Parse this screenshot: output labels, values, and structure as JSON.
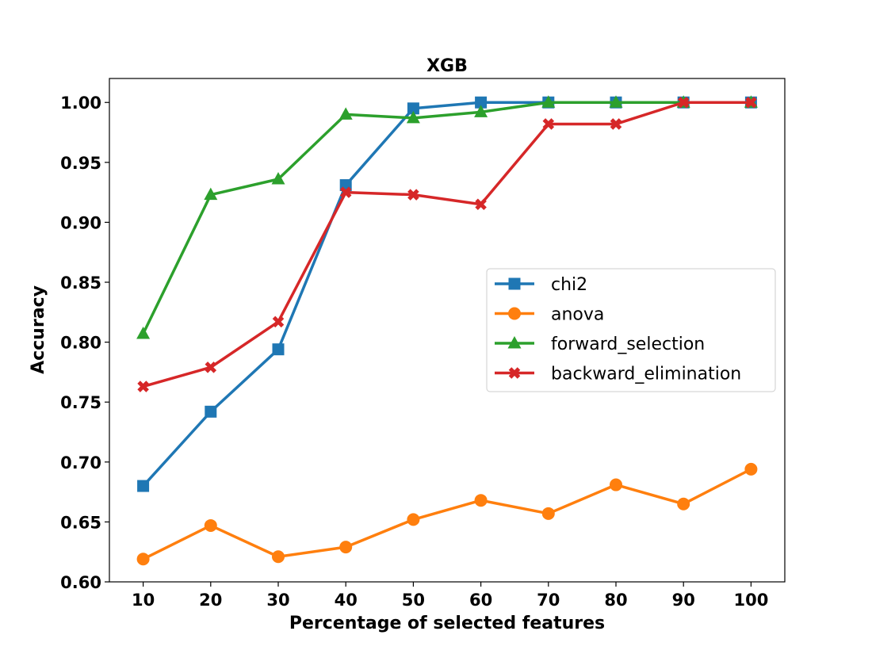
{
  "chart_data": {
    "type": "line",
    "title": "XGB",
    "xlabel": "Percentage of selected features",
    "ylabel": "Accuracy",
    "x": [
      10,
      20,
      30,
      40,
      50,
      60,
      70,
      80,
      90,
      100
    ],
    "xlim": [
      5,
      105
    ],
    "ylim": [
      0.6,
      1.02
    ],
    "yticks": [
      0.6,
      0.65,
      0.7,
      0.75,
      0.8,
      0.85,
      0.9,
      0.95,
      1.0
    ],
    "ytick_labels": [
      "0.60",
      "0.65",
      "0.70",
      "0.75",
      "0.80",
      "0.85",
      "0.90",
      "0.95",
      "1.00"
    ],
    "xticks": [
      10,
      20,
      30,
      40,
      50,
      60,
      70,
      80,
      90,
      100
    ],
    "xtick_labels": [
      "10",
      "20",
      "30",
      "40",
      "50",
      "60",
      "70",
      "80",
      "90",
      "100"
    ],
    "grid": false,
    "legend_position": "center-right",
    "series": [
      {
        "name": "chi2",
        "color": "#1f77b4",
        "marker": "square",
        "values": [
          0.68,
          0.742,
          0.794,
          0.931,
          0.995,
          1.0,
          1.0,
          1.0,
          1.0,
          1.0
        ]
      },
      {
        "name": "anova",
        "color": "#ff7f0e",
        "marker": "circle",
        "values": [
          0.619,
          0.647,
          0.621,
          0.629,
          0.652,
          0.668,
          0.657,
          0.681,
          0.665,
          0.694
        ]
      },
      {
        "name": "forward_selection",
        "color": "#2ca02c",
        "marker": "triangle",
        "values": [
          0.807,
          0.923,
          0.936,
          0.99,
          0.987,
          0.992,
          1.0,
          1.0,
          1.0,
          1.0
        ]
      },
      {
        "name": "backward_elimination",
        "color": "#d62728",
        "marker": "x",
        "values": [
          0.763,
          0.779,
          0.817,
          0.925,
          0.923,
          0.915,
          0.982,
          0.982,
          1.0,
          1.0
        ]
      }
    ]
  }
}
